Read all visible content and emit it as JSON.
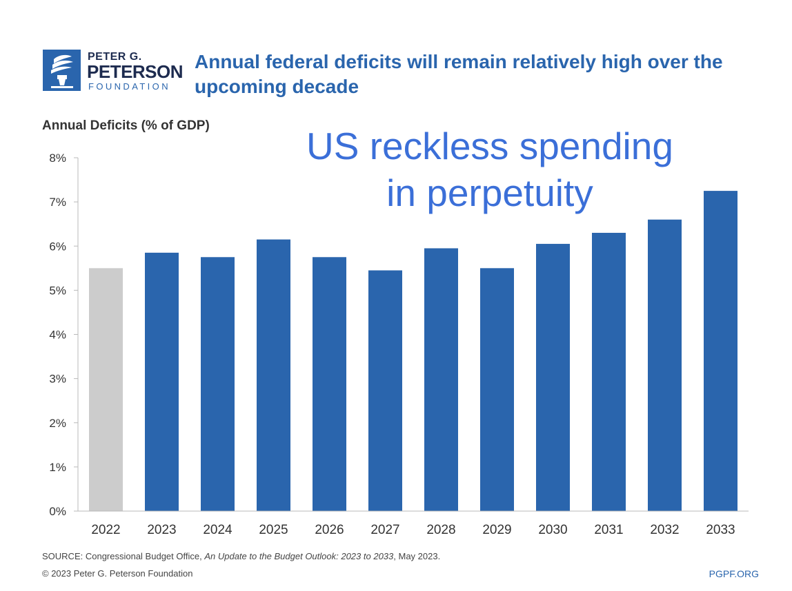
{
  "logo": {
    "line1": "PETER G.",
    "line2": "PETERSON",
    "line3": "FOUNDATION"
  },
  "header": {
    "title_line1": "Annual federal deficits will remain relatively high over the",
    "title_line2": "upcoming decade"
  },
  "overlay": {
    "line1": "US reckless spending",
    "line2": "in perpetuity"
  },
  "footer": {
    "source_prefix": "SOURCE: Congressional Budget Office, ",
    "source_italic": "An Update to the Budget Outlook: 2023 to 2033",
    "source_suffix": ", May 2023.",
    "copyright": "© 2023 Peter G. Peterson Foundation",
    "site": "PGPF.ORG"
  },
  "colors": {
    "bar_actual": "#cccccc",
    "bar_projected": "#2a65ad",
    "brand_blue": "#2a65ad",
    "overlay_text": "#3b6fd8"
  },
  "chart_data": {
    "type": "bar",
    "ylabel": "Annual Deficits (% of GDP)",
    "ylim": [
      0,
      8
    ],
    "ytick_values": [
      0,
      1,
      2,
      3,
      4,
      5,
      6,
      7,
      8
    ],
    "ytick_labels": [
      "0%",
      "1%",
      "2%",
      "3%",
      "4%",
      "5%",
      "6%",
      "7%",
      "8%"
    ],
    "categories": [
      "2022",
      "2023",
      "2024",
      "2025",
      "2026",
      "2027",
      "2028",
      "2029",
      "2030",
      "2031",
      "2032",
      "2033"
    ],
    "values": [
      5.5,
      5.85,
      5.75,
      6.15,
      5.75,
      5.45,
      5.95,
      5.5,
      6.05,
      6.3,
      6.6,
      7.25
    ],
    "bar_status": [
      "actual",
      "projected",
      "projected",
      "projected",
      "projected",
      "projected",
      "projected",
      "projected",
      "projected",
      "projected",
      "projected",
      "projected"
    ],
    "grid": false
  }
}
